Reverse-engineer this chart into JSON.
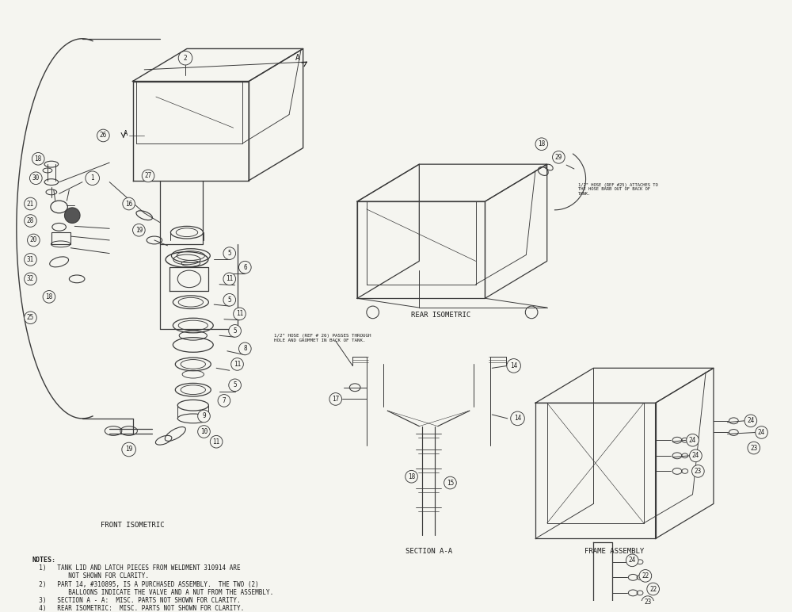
{
  "background_color": "#f5f5f0",
  "line_color": "#3a3a3a",
  "text_color": "#1a1a1a",
  "fig_width": 10.0,
  "fig_height": 7.72,
  "notes_lines": [
    "NOTES:",
    "  1)   TANK LID AND LATCH PIECES FROM WELDMENT 310914 ARE",
    "          NOT SHOWN FOR CLARITY.",
    "  2)   PART 14, #310895, IS A PURCHASED ASSEMBLY.  THE TWO (2)",
    "          BALLOONS INDICATE THE VALVE AND A NUT FROM THE ASSEMBLY.",
    "  3)   SECTION A - A:  MISC. PARTS NOT SHOWN FOR CLARITY.",
    "  4)   REAR ISOMETRIC:  MISC. PARTS NOT SHOWN FOR CLARITY."
  ],
  "section_labels": {
    "front_isometric": "FRONT ISOMETRIC",
    "rear_isometric": "REAR ISOMETRIC",
    "section_aa": "SECTION A-A",
    "frame_assembly": "FRAME ASSEMBLY"
  },
  "rear_note": "1/2\" HOSE (REF #25) ATTACHES TO\nTHE HOSE BARB OUT OF BACK OF\nTANK.",
  "section_note": "1/2\" HOSE (REF # 26) PASSES THROUGH\nHOLE AND GROMMET IN BACK OF TANK."
}
